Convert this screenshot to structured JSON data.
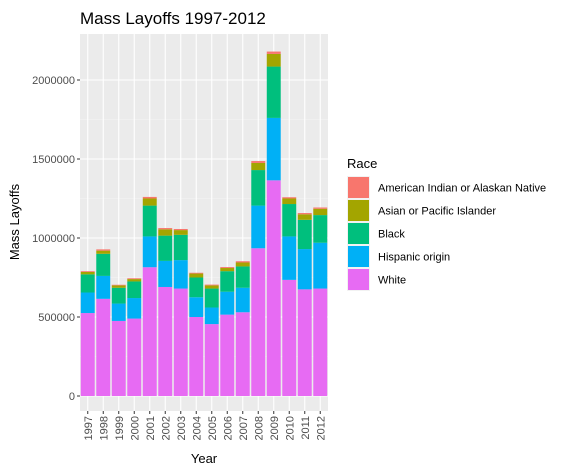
{
  "chart_data": {
    "type": "bar",
    "stacked": true,
    "title": "Mass Layoffs 1997-2012",
    "xlabel": "Year",
    "ylabel": "Mass Layoffs",
    "categories": [
      "1997",
      "1998",
      "1999",
      "2000",
      "2001",
      "2002",
      "2003",
      "2004",
      "2005",
      "2006",
      "2007",
      "2008",
      "2009",
      "2010",
      "2011",
      "2012"
    ],
    "ylim": [
      0,
      2300000
    ],
    "yticks": [
      0,
      500000,
      1000000,
      1500000,
      2000000
    ],
    "ytick_labels": [
      "0",
      "500000",
      "1000000",
      "1500000",
      "2000000"
    ],
    "grid": true,
    "legend": {
      "title": "Race",
      "position": "right"
    },
    "series": [
      {
        "name": "White",
        "color": "#E76BF3",
        "values": [
          525000,
          615000,
          475000,
          490000,
          815000,
          690000,
          680000,
          500000,
          455000,
          515000,
          530000,
          935000,
          1365000,
          735000,
          675000,
          680000
        ]
      },
      {
        "name": "Hispanic origin",
        "color": "#00B0F6",
        "values": [
          130000,
          145000,
          110000,
          130000,
          195000,
          165000,
          180000,
          125000,
          105000,
          145000,
          155000,
          270000,
          395000,
          275000,
          255000,
          290000
        ]
      },
      {
        "name": "Black",
        "color": "#00BF7D",
        "values": [
          115000,
          140000,
          100000,
          105000,
          195000,
          160000,
          160000,
          125000,
          120000,
          130000,
          135000,
          225000,
          325000,
          205000,
          185000,
          175000
        ]
      },
      {
        "name": "Asian or Pacific Islander",
        "color": "#A3A500",
        "values": [
          15000,
          20000,
          15000,
          15000,
          45000,
          40000,
          30000,
          25000,
          20000,
          20000,
          25000,
          45000,
          80000,
          35000,
          35000,
          40000
        ]
      },
      {
        "name": "American Indian or Alaskan Native",
        "color": "#F8766D",
        "values": [
          5000,
          8000,
          4000,
          5000,
          10000,
          8000,
          7000,
          5000,
          5000,
          6000,
          8000,
          12000,
          15000,
          8000,
          8000,
          8000
        ]
      }
    ],
    "legend_order": [
      "American Indian or Alaskan Native",
      "Asian or Pacific Islander",
      "Black",
      "Hispanic origin",
      "White"
    ]
  }
}
